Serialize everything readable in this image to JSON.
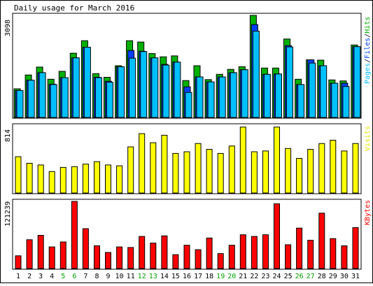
{
  "title": "Daily usage for March 2016",
  "colors": {
    "hits": "#00b000",
    "files": "#0040ff",
    "pages": "#00c0ff",
    "visits": "#ffff00",
    "kbytes": "#ff0000",
    "weekend_label": "#00a000",
    "weekday_label": "#000000",
    "bar_outline": "#000000",
    "panel_border": "#000000"
  },
  "chart_data": [
    {
      "type": "bar",
      "id": "requests",
      "ylabel_max": "3098",
      "ylim": [
        0,
        3098
      ],
      "legend": {
        "text_pages": "Pages",
        "sep1": "/",
        "text_files": "Files",
        "sep2": "/",
        "text_hits": "Hits"
      },
      "categories": [
        "1",
        "2",
        "3",
        "4",
        "5",
        "6",
        "7",
        "8",
        "9",
        "10",
        "11",
        "12",
        "13",
        "14",
        "15",
        "16",
        "17",
        "18",
        "19",
        "20",
        "21",
        "22",
        "23",
        "24",
        "25",
        "26",
        "27",
        "28",
        "29",
        "30",
        "31"
      ],
      "weekend": [
        5,
        6,
        12,
        13,
        19,
        20,
        26,
        27
      ],
      "series": [
        {
          "name": "Hits",
          "values": [
            870,
            1290,
            1530,
            1160,
            1400,
            1950,
            2330,
            1330,
            1220,
            1570,
            2330,
            2290,
            1940,
            1840,
            1870,
            1120,
            1570,
            1150,
            1310,
            1460,
            1540,
            3098,
            1500,
            1500,
            2380,
            1160,
            1750,
            1740,
            1140,
            1110,
            2200
          ]
        },
        {
          "name": "Files",
          "values": [
            820,
            1130,
            1360,
            1010,
            1210,
            1810,
            2130,
            1220,
            1100,
            1540,
            2030,
            2010,
            1800,
            1610,
            1680,
            930,
            1230,
            1080,
            1230,
            1360,
            1450,
            2820,
            1310,
            1320,
            2180,
            1000,
            1750,
            1570,
            1040,
            1040,
            2150
          ]
        },
        {
          "name": "Pages",
          "values": [
            820,
            1130,
            1360,
            1000,
            1210,
            1810,
            2130,
            1210,
            1070,
            1540,
            1800,
            2000,
            1810,
            1590,
            1680,
            760,
            1230,
            1080,
            1230,
            1360,
            1450,
            2620,
            1310,
            1320,
            2140,
            1000,
            1650,
            1570,
            1040,
            940,
            2150
          ]
        }
      ]
    },
    {
      "type": "bar",
      "id": "visits",
      "ylabel_max": "814",
      "ylim": [
        0,
        814
      ],
      "legend": {
        "text_visits": "Visits"
      },
      "series": [
        {
          "name": "Visits",
          "values": [
            440,
            360,
            340,
            260,
            310,
            320,
            350,
            380,
            340,
            330,
            560,
            720,
            610,
            700,
            480,
            500,
            600,
            530,
            480,
            570,
            800,
            500,
            510,
            800,
            540,
            420,
            530,
            600,
            640,
            510,
            600
          ]
        }
      ]
    },
    {
      "type": "bar",
      "id": "kbytes",
      "ylabel_max": "121239",
      "ylim": [
        0,
        121239
      ],
      "legend": {
        "text_kbytes": "KBytes"
      },
      "series": [
        {
          "name": "KBytes",
          "values": [
            23000,
            52000,
            60000,
            39000,
            48000,
            121239,
            72000,
            41000,
            29000,
            39000,
            38000,
            58000,
            46000,
            59000,
            25000,
            42000,
            34000,
            55000,
            27000,
            42000,
            61000,
            58000,
            61000,
            117000,
            43000,
            73000,
            51000,
            100000,
            54000,
            41000,
            74000
          ]
        }
      ]
    }
  ]
}
